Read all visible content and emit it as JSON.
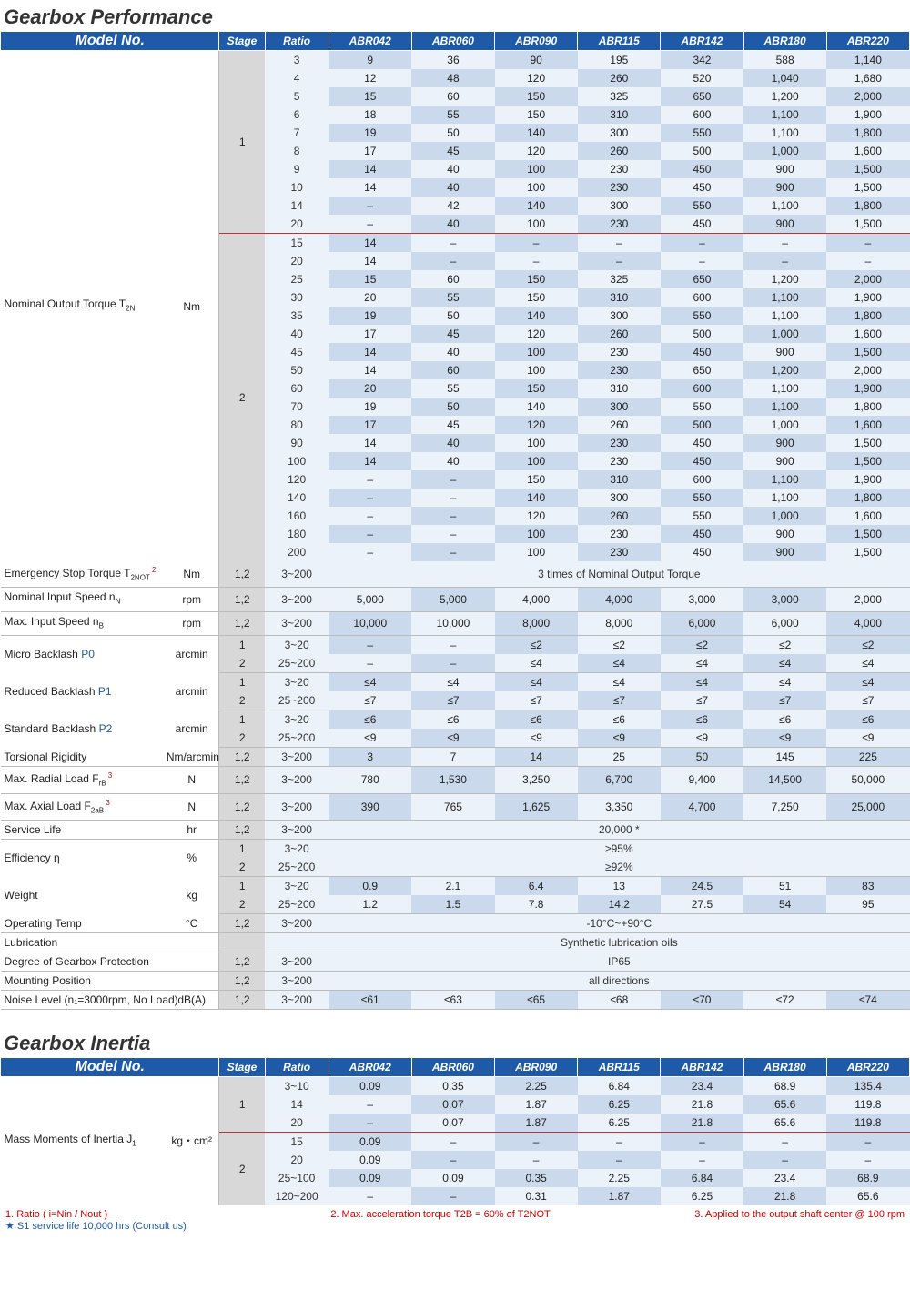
{
  "title_perf": "Gearbox Performance",
  "title_inertia": "Gearbox Inertia",
  "headers": {
    "model": "Model No.",
    "stage": "Stage",
    "ratio": "Ratio",
    "cols": [
      "ABR042",
      "ABR060",
      "ABR090",
      "ABR115",
      "ABR142",
      "ABR180",
      "ABR220"
    ]
  },
  "colors": {
    "header_bg": "#1e5aa8",
    "odd_bg": "#cad9ec",
    "even_bg": "#ecf2f9",
    "stage_bg": "#d8d8d8",
    "red_rule": "#b33",
    "link_red": "#c00",
    "link_blue": "#1e5aa8"
  },
  "nominal_torque": {
    "label": "Nominal  Output  Torque  T",
    "sub": "2N",
    "unit": "Nm",
    "stage1": {
      "stage": "1",
      "rows": [
        {
          "ratio": "3",
          "v": [
            "9",
            "36",
            "90",
            "195",
            "342",
            "588",
            "1,140"
          ]
        },
        {
          "ratio": "4",
          "v": [
            "12",
            "48",
            "120",
            "260",
            "520",
            "1,040",
            "1,680"
          ]
        },
        {
          "ratio": "5",
          "v": [
            "15",
            "60",
            "150",
            "325",
            "650",
            "1,200",
            "2,000"
          ]
        },
        {
          "ratio": "6",
          "v": [
            "18",
            "55",
            "150",
            "310",
            "600",
            "1,100",
            "1,900"
          ]
        },
        {
          "ratio": "7",
          "v": [
            "19",
            "50",
            "140",
            "300",
            "550",
            "1,100",
            "1,800"
          ]
        },
        {
          "ratio": "8",
          "v": [
            "17",
            "45",
            "120",
            "260",
            "500",
            "1,000",
            "1,600"
          ]
        },
        {
          "ratio": "9",
          "v": [
            "14",
            "40",
            "100",
            "230",
            "450",
            "900",
            "1,500"
          ]
        },
        {
          "ratio": "10",
          "v": [
            "14",
            "40",
            "100",
            "230",
            "450",
            "900",
            "1,500"
          ]
        },
        {
          "ratio": "14",
          "v": [
            "–",
            "42",
            "140",
            "300",
            "550",
            "1,100",
            "1,800"
          ]
        },
        {
          "ratio": "20",
          "v": [
            "–",
            "40",
            "100",
            "230",
            "450",
            "900",
            "1,500"
          ]
        }
      ]
    },
    "stage2": {
      "stage": "2",
      "rows": [
        {
          "ratio": "15",
          "v": [
            "14",
            "–",
            "–",
            "–",
            "–",
            "–",
            "–"
          ]
        },
        {
          "ratio": "20",
          "v": [
            "14",
            "–",
            "–",
            "–",
            "–",
            "–",
            "–"
          ]
        },
        {
          "ratio": "25",
          "v": [
            "15",
            "60",
            "150",
            "325",
            "650",
            "1,200",
            "2,000"
          ]
        },
        {
          "ratio": "30",
          "v": [
            "20",
            "55",
            "150",
            "310",
            "600",
            "1,100",
            "1,900"
          ]
        },
        {
          "ratio": "35",
          "v": [
            "19",
            "50",
            "140",
            "300",
            "550",
            "1,100",
            "1,800"
          ]
        },
        {
          "ratio": "40",
          "v": [
            "17",
            "45",
            "120",
            "260",
            "500",
            "1,000",
            "1,600"
          ]
        },
        {
          "ratio": "45",
          "v": [
            "14",
            "40",
            "100",
            "230",
            "450",
            "900",
            "1,500"
          ]
        },
        {
          "ratio": "50",
          "v": [
            "14",
            "60",
            "100",
            "230",
            "650",
            "1,200",
            "2,000"
          ]
        },
        {
          "ratio": "60",
          "v": [
            "20",
            "55",
            "150",
            "310",
            "600",
            "1,100",
            "1,900"
          ]
        },
        {
          "ratio": "70",
          "v": [
            "19",
            "50",
            "140",
            "300",
            "550",
            "1,100",
            "1,800"
          ]
        },
        {
          "ratio": "80",
          "v": [
            "17",
            "45",
            "120",
            "260",
            "500",
            "1,000",
            "1,600"
          ]
        },
        {
          "ratio": "90",
          "v": [
            "14",
            "40",
            "100",
            "230",
            "450",
            "900",
            "1,500"
          ]
        },
        {
          "ratio": "100",
          "v": [
            "14",
            "40",
            "100",
            "230",
            "450",
            "900",
            "1,500"
          ]
        },
        {
          "ratio": "120",
          "v": [
            "–",
            "–",
            "150",
            "310",
            "600",
            "1,100",
            "1,900"
          ]
        },
        {
          "ratio": "140",
          "v": [
            "–",
            "–",
            "140",
            "300",
            "550",
            "1,100",
            "1,800"
          ]
        },
        {
          "ratio": "160",
          "v": [
            "–",
            "–",
            "120",
            "260",
            "550",
            "1,000",
            "1,600"
          ]
        },
        {
          "ratio": "180",
          "v": [
            "–",
            "–",
            "100",
            "230",
            "450",
            "900",
            "1,500"
          ]
        },
        {
          "ratio": "200",
          "v": [
            "–",
            "–",
            "100",
            "230",
            "450",
            "900",
            "1,500"
          ]
        }
      ]
    }
  },
  "simple_rows": [
    {
      "label": "Emergency Stop Torque T",
      "sub": "2NOT",
      "sup": "2",
      "unit": "Nm",
      "stage": "1,2",
      "ratio": "3~200",
      "merged": "3 times of Nominal Output Torque"
    },
    {
      "label": "Nominal  Input  Speed  n",
      "sub": "N",
      "unit": "rpm",
      "stage": "1,2",
      "ratio": "3~200",
      "v": [
        "5,000",
        "5,000",
        "4,000",
        "4,000",
        "3,000",
        "3,000",
        "2,000"
      ]
    },
    {
      "label": "Max.  Input  Speed  n",
      "sub": "B",
      "unit": "rpm",
      "stage": "1,2",
      "ratio": "3~200",
      "v": [
        "10,000",
        "10,000",
        "8,000",
        "8,000",
        "6,000",
        "6,000",
        "4,000"
      ]
    }
  ],
  "backlash": [
    {
      "label": "Micro  Backlash ",
      "badge": "P0",
      "unit": "arcmin",
      "rows": [
        {
          "stage": "1",
          "ratio": "3~20",
          "v": [
            "–",
            "–",
            "≤2",
            "≤2",
            "≤2",
            "≤2",
            "≤2"
          ]
        },
        {
          "stage": "2",
          "ratio": "25~200",
          "v": [
            "–",
            "–",
            "≤4",
            "≤4",
            "≤4",
            "≤4",
            "≤4"
          ]
        }
      ]
    },
    {
      "label": "Reduced  Backlash ",
      "badge": "P1",
      "unit": "arcmin",
      "rows": [
        {
          "stage": "1",
          "ratio": "3~20",
          "v": [
            "≤4",
            "≤4",
            "≤4",
            "≤4",
            "≤4",
            "≤4",
            "≤4"
          ]
        },
        {
          "stage": "2",
          "ratio": "25~200",
          "v": [
            "≤7",
            "≤7",
            "≤7",
            "≤7",
            "≤7",
            "≤7",
            "≤7"
          ]
        }
      ]
    },
    {
      "label": "Standard  Backlash ",
      "badge": "P2",
      "unit": "arcmin",
      "rows": [
        {
          "stage": "1",
          "ratio": "3~20",
          "v": [
            "≤6",
            "≤6",
            "≤6",
            "≤6",
            "≤6",
            "≤6",
            "≤6"
          ]
        },
        {
          "stage": "2",
          "ratio": "25~200",
          "v": [
            "≤9",
            "≤9",
            "≤9",
            "≤9",
            "≤9",
            "≤9",
            "≤9"
          ]
        }
      ]
    }
  ],
  "after_backlash": [
    {
      "label": "Torsional  Rigidity",
      "unit": "Nm/arcmin",
      "stage": "1,2",
      "ratio": "3~200",
      "v": [
        "3",
        "7",
        "14",
        "25",
        "50",
        "145",
        "225"
      ]
    },
    {
      "label": "Max.  Radial  Load  F",
      "sub": "rB",
      "sup": "3",
      "unit": "N",
      "stage": "1,2",
      "ratio": "3~200",
      "v": [
        "780",
        "1,530",
        "3,250",
        "6,700",
        "9,400",
        "14,500",
        "50,000"
      ]
    },
    {
      "label": "Max.  Axial  Load  F",
      "sub": "2aB",
      "sup": "3",
      "unit": "N",
      "stage": "1,2",
      "ratio": "3~200",
      "v": [
        "390",
        "765",
        "1,625",
        "3,350",
        "4,700",
        "7,250",
        "25,000"
      ]
    },
    {
      "label": "Service  Life",
      "unit": "hr",
      "stage": "1,2",
      "ratio": "3~200",
      "merged": "20,000 *"
    }
  ],
  "efficiency": {
    "label": "Efficiency η",
    "unit": "%",
    "rows": [
      {
        "stage": "1",
        "ratio": "3~20",
        "merged": "≥95%"
      },
      {
        "stage": "2",
        "ratio": "25~200",
        "merged": "≥92%"
      }
    ]
  },
  "weight": {
    "label": "Weight",
    "unit": "kg",
    "rows": [
      {
        "stage": "1",
        "ratio": "3~20",
        "v": [
          "0.9",
          "2.1",
          "6.4",
          "13",
          "24.5",
          "51",
          "83"
        ]
      },
      {
        "stage": "2",
        "ratio": "25~200",
        "v": [
          "1.2",
          "1.5",
          "7.8",
          "14.2",
          "27.5",
          "54",
          "95"
        ]
      }
    ]
  },
  "final_rows": [
    {
      "label": "Operating  Temp",
      "unit": "°C",
      "stage": "1,2",
      "ratio": "3~200",
      "merged": "-10°C~+90°C"
    },
    {
      "label": "Lubrication",
      "unit": "",
      "stage": "",
      "ratio": "",
      "merged": "Synthetic lubrication oils"
    },
    {
      "label": "Degree  of  Gearbox  Protection",
      "unit": "",
      "stage": "1,2",
      "ratio": "3~200",
      "merged": "IP65"
    },
    {
      "label": "Mounting  Position",
      "unit": "",
      "stage": "1,2",
      "ratio": "3~200",
      "merged": "all directions"
    },
    {
      "label": "Noise Level (n₁=3000rpm, No Load)",
      "unit": "dB(A)",
      "stage": "1,2",
      "ratio": "3~200",
      "v": [
        "≤61",
        "≤63",
        "≤65",
        "≤68",
        "≤70",
        "≤72",
        "≤74"
      ]
    }
  ],
  "inertia": {
    "label": "Mass Moments of Inertia J",
    "sub": "1",
    "unit": "kg・cm²",
    "stage1": {
      "stage": "1",
      "rows": [
        {
          "ratio": "3~10",
          "v": [
            "0.09",
            "0.35",
            "2.25",
            "6.84",
            "23.4",
            "68.9",
            "135.4"
          ]
        },
        {
          "ratio": "14",
          "v": [
            "–",
            "0.07",
            "1.87",
            "6.25",
            "21.8",
            "65.6",
            "119.8"
          ]
        },
        {
          "ratio": "20",
          "v": [
            "–",
            "0.07",
            "1.87",
            "6.25",
            "21.8",
            "65.6",
            "119.8"
          ]
        }
      ]
    },
    "stage2": {
      "stage": "2",
      "rows": [
        {
          "ratio": "15",
          "v": [
            "0.09",
            "–",
            "–",
            "–",
            "–",
            "–",
            "–"
          ]
        },
        {
          "ratio": "20",
          "v": [
            "0.09",
            "–",
            "–",
            "–",
            "–",
            "–",
            "–"
          ]
        },
        {
          "ratio": "25~100",
          "v": [
            "0.09",
            "0.09",
            "0.35",
            "2.25",
            "6.84",
            "23.4",
            "68.9"
          ]
        },
        {
          "ratio": "120~200",
          "v": [
            "–",
            "–",
            "0.31",
            "1.87",
            "6.25",
            "21.8",
            "65.6"
          ]
        }
      ]
    }
  },
  "footnotes": {
    "f1": "1. Ratio ( i=Nin / Nout )",
    "f2": "2. Max. acceleration torque T2B = 60% of  T2NOT",
    "f3": "3. Applied to the output shaft center @ 100 rpm",
    "star": "★ S1 service life 10,000 hrs (Consult us)"
  }
}
